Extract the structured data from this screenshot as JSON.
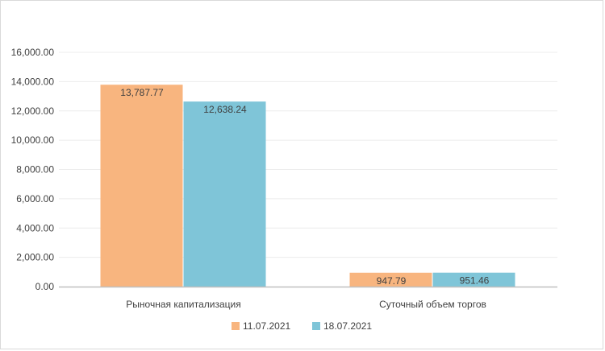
{
  "chart_data": {
    "type": "bar",
    "categories": [
      "Рыночная капитализация",
      "Суточный объем торгов"
    ],
    "series": [
      {
        "name": "11.07.2021",
        "values": [
          13787.77,
          947.79
        ],
        "labels": [
          "13,787.77",
          "947.79"
        ],
        "color": "#f8b57f"
      },
      {
        "name": "18.07.2021",
        "values": [
          12638.24,
          951.46
        ],
        "labels": [
          "12,638.24",
          "951.46"
        ],
        "color": "#7fc5d8"
      }
    ],
    "yticks": [
      {
        "value": 0,
        "label": "0.00"
      },
      {
        "value": 2000,
        "label": "2,000.00"
      },
      {
        "value": 4000,
        "label": "4,000.00"
      },
      {
        "value": 6000,
        "label": "6,000.00"
      },
      {
        "value": 8000,
        "label": "8,000.00"
      },
      {
        "value": 10000,
        "label": "10,000.00"
      },
      {
        "value": 12000,
        "label": "12,000.00"
      },
      {
        "value": 14000,
        "label": "14,000.00"
      },
      {
        "value": 16000,
        "label": "16,000.00"
      }
    ],
    "ylim": [
      0,
      16000
    ],
    "grid": true,
    "legend_position": "bottom",
    "title": "",
    "xlabel": "",
    "ylabel": ""
  },
  "colors": {
    "gridline": "#ececec",
    "axis": "#bfbfbf",
    "text": "#404040"
  }
}
